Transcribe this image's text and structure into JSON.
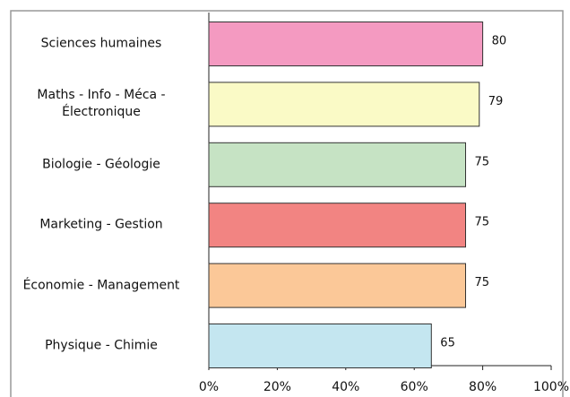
{
  "chart_data": {
    "type": "bar",
    "orientation": "horizontal",
    "categories": [
      "Sciences humaines",
      "Maths - Info - Méca -\nÉlectronique",
      "Biologie - Géologie",
      "Marketing - Gestion",
      "Économie - Management",
      "Physique - Chimie"
    ],
    "values": [
      80,
      79,
      75,
      75,
      75,
      65
    ],
    "colors": [
      "#f49ac1",
      "#fafac6",
      "#c6e3c4",
      "#f28482",
      "#fbc898",
      "#c4e6f0"
    ],
    "xlim": [
      0,
      100
    ],
    "xticks": [
      {
        "value": 0,
        "label": "0%"
      },
      {
        "value": 20,
        "label": "20%"
      },
      {
        "value": 40,
        "label": "40%"
      },
      {
        "value": 60,
        "label": "60%"
      },
      {
        "value": 80,
        "label": "80%"
      },
      {
        "value": 100,
        "label": "100%"
      }
    ]
  }
}
